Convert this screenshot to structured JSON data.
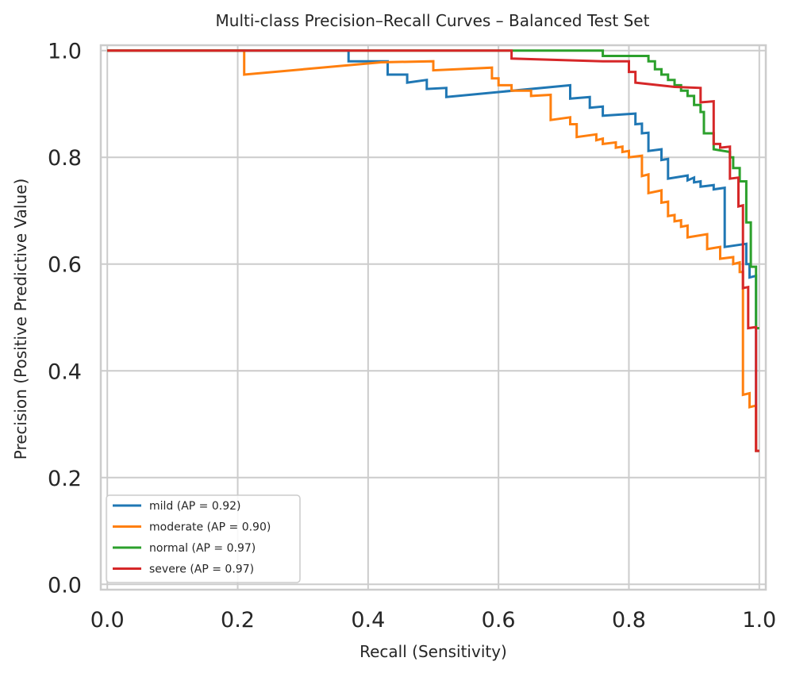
{
  "chart_data": {
    "type": "line",
    "title": "Multi-class Precision–Recall Curves – Balanced Test Set",
    "xlabel": "Recall (Sensitivity)",
    "ylabel": "Precision (Positive Predictive Value)",
    "xlim": [
      -0.01,
      1.01
    ],
    "ylim": [
      -0.01,
      1.01
    ],
    "xticks": [
      "0.0",
      "0.2",
      "0.4",
      "0.6",
      "0.8",
      "1.0"
    ],
    "yticks": [
      "0.0",
      "0.2",
      "0.4",
      "0.6",
      "0.8",
      "1.0"
    ],
    "grid": true,
    "legend_position": "lower-left",
    "series": [
      {
        "name": "mild (AP = 0.92)",
        "color": "#1f77b4",
        "points": [
          [
            0,
            1.0
          ],
          [
            0.37,
            1.0
          ],
          [
            0.37,
            0.98
          ],
          [
            0.43,
            0.98
          ],
          [
            0.43,
            0.955
          ],
          [
            0.46,
            0.955
          ],
          [
            0.46,
            0.94
          ],
          [
            0.49,
            0.945
          ],
          [
            0.49,
            0.928
          ],
          [
            0.52,
            0.93
          ],
          [
            0.52,
            0.913
          ],
          [
            0.71,
            0.935
          ],
          [
            0.71,
            0.91
          ],
          [
            0.74,
            0.913
          ],
          [
            0.74,
            0.893
          ],
          [
            0.76,
            0.895
          ],
          [
            0.76,
            0.878
          ],
          [
            0.81,
            0.882
          ],
          [
            0.81,
            0.862
          ],
          [
            0.82,
            0.863
          ],
          [
            0.82,
            0.845
          ],
          [
            0.83,
            0.846
          ],
          [
            0.83,
            0.812
          ],
          [
            0.85,
            0.815
          ],
          [
            0.85,
            0.795
          ],
          [
            0.86,
            0.797
          ],
          [
            0.86,
            0.76
          ],
          [
            0.89,
            0.766
          ],
          [
            0.89,
            0.757
          ],
          [
            0.9,
            0.762
          ],
          [
            0.9,
            0.753
          ],
          [
            0.91,
            0.755
          ],
          [
            0.91,
            0.745
          ],
          [
            0.93,
            0.748
          ],
          [
            0.93,
            0.74
          ],
          [
            0.947,
            0.743
          ],
          [
            0.947,
            0.632
          ],
          [
            0.98,
            0.638
          ],
          [
            0.98,
            0.6
          ],
          [
            0.985,
            0.6
          ],
          [
            0.985,
            0.575
          ],
          [
            0.995,
            0.578
          ],
          [
            0.995,
            0.25
          ],
          [
            1.0,
            0.25
          ]
        ]
      },
      {
        "name": "moderate (AP = 0.90)",
        "color": "#ff7f0e",
        "points": [
          [
            0,
            1.0
          ],
          [
            0.21,
            1.0
          ],
          [
            0.21,
            0.955
          ],
          [
            0.42,
            0.978
          ],
          [
            0.5,
            0.98
          ],
          [
            0.5,
            0.963
          ],
          [
            0.59,
            0.968
          ],
          [
            0.59,
            0.948
          ],
          [
            0.6,
            0.948
          ],
          [
            0.6,
            0.935
          ],
          [
            0.62,
            0.935
          ],
          [
            0.62,
            0.925
          ],
          [
            0.65,
            0.925
          ],
          [
            0.65,
            0.915
          ],
          [
            0.68,
            0.917
          ],
          [
            0.68,
            0.87
          ],
          [
            0.71,
            0.875
          ],
          [
            0.71,
            0.862
          ],
          [
            0.72,
            0.862
          ],
          [
            0.72,
            0.838
          ],
          [
            0.75,
            0.843
          ],
          [
            0.75,
            0.832
          ],
          [
            0.76,
            0.835
          ],
          [
            0.76,
            0.825
          ],
          [
            0.78,
            0.828
          ],
          [
            0.78,
            0.818
          ],
          [
            0.79,
            0.82
          ],
          [
            0.79,
            0.81
          ],
          [
            0.8,
            0.812
          ],
          [
            0.8,
            0.8
          ],
          [
            0.82,
            0.803
          ],
          [
            0.82,
            0.765
          ],
          [
            0.83,
            0.768
          ],
          [
            0.83,
            0.733
          ],
          [
            0.85,
            0.738
          ],
          [
            0.85,
            0.715
          ],
          [
            0.86,
            0.717
          ],
          [
            0.86,
            0.69
          ],
          [
            0.87,
            0.692
          ],
          [
            0.87,
            0.68
          ],
          [
            0.88,
            0.682
          ],
          [
            0.88,
            0.67
          ],
          [
            0.89,
            0.672
          ],
          [
            0.89,
            0.65
          ],
          [
            0.92,
            0.656
          ],
          [
            0.92,
            0.628
          ],
          [
            0.94,
            0.632
          ],
          [
            0.94,
            0.61
          ],
          [
            0.96,
            0.613
          ],
          [
            0.96,
            0.6
          ],
          [
            0.97,
            0.603
          ],
          [
            0.97,
            0.585
          ],
          [
            0.975,
            0.585
          ],
          [
            0.975,
            0.355
          ],
          [
            0.985,
            0.358
          ],
          [
            0.985,
            0.332
          ],
          [
            0.995,
            0.335
          ],
          [
            0.995,
            0.25
          ],
          [
            1.0,
            0.25
          ]
        ]
      },
      {
        "name": "normal (AP = 0.97)",
        "color": "#2ca02c",
        "points": [
          [
            0,
            1.0
          ],
          [
            0.76,
            1.0
          ],
          [
            0.76,
            0.99
          ],
          [
            0.83,
            0.99
          ],
          [
            0.83,
            0.98
          ],
          [
            0.84,
            0.98
          ],
          [
            0.84,
            0.965
          ],
          [
            0.85,
            0.965
          ],
          [
            0.85,
            0.955
          ],
          [
            0.86,
            0.955
          ],
          [
            0.86,
            0.945
          ],
          [
            0.87,
            0.945
          ],
          [
            0.87,
            0.935
          ],
          [
            0.88,
            0.935
          ],
          [
            0.88,
            0.925
          ],
          [
            0.89,
            0.925
          ],
          [
            0.89,
            0.915
          ],
          [
            0.9,
            0.915
          ],
          [
            0.9,
            0.898
          ],
          [
            0.91,
            0.898
          ],
          [
            0.91,
            0.885
          ],
          [
            0.915,
            0.885
          ],
          [
            0.915,
            0.845
          ],
          [
            0.93,
            0.845
          ],
          [
            0.93,
            0.815
          ],
          [
            0.955,
            0.81
          ],
          [
            0.955,
            0.8
          ],
          [
            0.96,
            0.8
          ],
          [
            0.96,
            0.78
          ],
          [
            0.97,
            0.78
          ],
          [
            0.97,
            0.755
          ],
          [
            0.98,
            0.755
          ],
          [
            0.98,
            0.678
          ],
          [
            0.987,
            0.678
          ],
          [
            0.987,
            0.595
          ],
          [
            0.995,
            0.595
          ],
          [
            0.995,
            0.48
          ],
          [
            1.0,
            0.48
          ]
        ]
      },
      {
        "name": "severe (AP = 0.97)",
        "color": "#d62728",
        "points": [
          [
            0,
            1.0
          ],
          [
            0.62,
            1.0
          ],
          [
            0.62,
            0.985
          ],
          [
            0.76,
            0.98
          ],
          [
            0.8,
            0.98
          ],
          [
            0.8,
            0.96
          ],
          [
            0.81,
            0.96
          ],
          [
            0.81,
            0.94
          ],
          [
            0.87,
            0.932
          ],
          [
            0.91,
            0.93
          ],
          [
            0.91,
            0.903
          ],
          [
            0.93,
            0.905
          ],
          [
            0.93,
            0.825
          ],
          [
            0.94,
            0.825
          ],
          [
            0.94,
            0.818
          ],
          [
            0.955,
            0.82
          ],
          [
            0.955,
            0.76
          ],
          [
            0.968,
            0.762
          ],
          [
            0.968,
            0.708
          ],
          [
            0.975,
            0.71
          ],
          [
            0.975,
            0.555
          ],
          [
            0.983,
            0.557
          ],
          [
            0.983,
            0.48
          ],
          [
            0.995,
            0.482
          ],
          [
            0.995,
            0.25
          ],
          [
            1.0,
            0.25
          ]
        ]
      }
    ]
  }
}
